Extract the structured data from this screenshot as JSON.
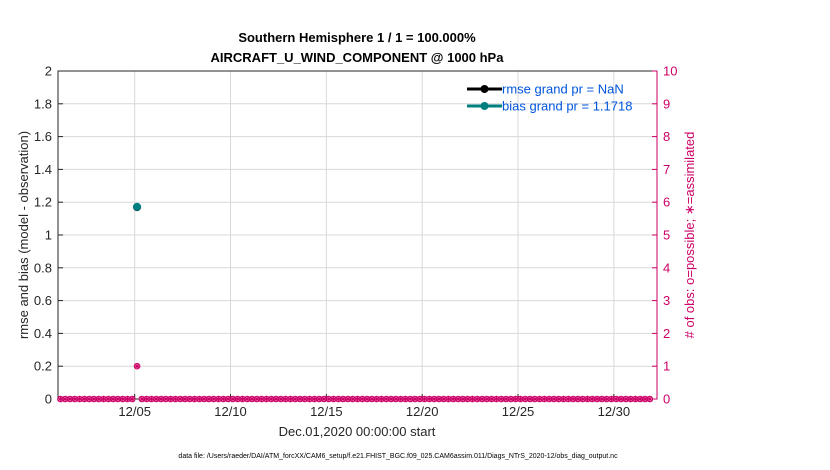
{
  "colors": {
    "rmse": "#000000",
    "bias": "#007f7f",
    "obs": "#cc0066",
    "legend_text": "#0055dd",
    "grid": "#d9d9d9",
    "axis": "#262626"
  },
  "chart_data": {
    "type": "line",
    "title": "Southern Hemisphere 1 / 1 = 100.000%",
    "subtitle": "AIRCRAFT_U_WIND_COMPONENT @ 1000 hPa",
    "xlabel": "Dec.01,2020 00:00:00 start",
    "ylabel": "rmse and bias (model - observation)",
    "ylabel_right": "# of obs: o=possible; ∗=assimilated",
    "xlim": [
      0.0,
      31.25
    ],
    "ylim": [
      0,
      2
    ],
    "ylim_right": [
      0,
      10
    ],
    "x_ticks": [
      4,
      9,
      14,
      19,
      24,
      29
    ],
    "x_tick_labels": [
      "12/05",
      "12/10",
      "12/15",
      "12/20",
      "12/25",
      "12/30"
    ],
    "y_ticks": [
      0,
      0.2,
      0.4,
      0.6,
      0.8,
      1,
      1.2,
      1.4,
      1.6,
      1.8,
      2
    ],
    "y_tick_labels": [
      "0",
      "0.2",
      "0.4",
      "0.6",
      "0.8",
      "1",
      "1.2",
      "1.4",
      "1.6",
      "1.8",
      "2"
    ],
    "y_right_ticks": [
      0,
      1,
      2,
      3,
      4,
      5,
      6,
      7,
      8,
      9,
      10
    ],
    "y_right_tick_labels": [
      "0",
      "1",
      "2",
      "3",
      "4",
      "5",
      "6",
      "7",
      "8",
      "9",
      "10"
    ],
    "grid": true,
    "legend_position": "top-right",
    "series": [
      {
        "name": "rmse grand pr = NaN",
        "x": [
          4.125
        ],
        "values": [
          1.17
        ],
        "axis": "left"
      },
      {
        "name": "bias grand pr = 1.1718",
        "x": [
          4.125
        ],
        "values": [
          1.1718
        ],
        "axis": "left"
      }
    ],
    "obs_counts": {
      "x_start": 0.125,
      "x_step": 0.25,
      "n": 124,
      "nonzero": [
        {
          "x": 4.125,
          "possible": 1,
          "assimilated": 1
        }
      ]
    },
    "footer": "data file: /Users/raeder/DAI/ATM_forcXX/CAM6_setup/f.e21.FHIST_BGC.f09_025.CAM6assim.011/Diags_NTrS_2020-12/obs_diag_output.nc"
  }
}
